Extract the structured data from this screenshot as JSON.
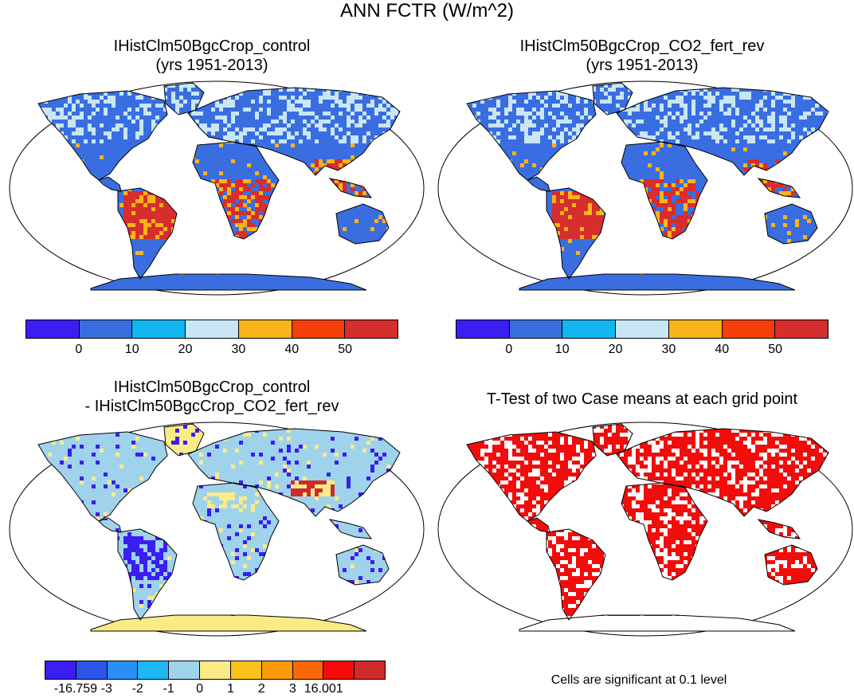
{
  "main_title": "ANN FCTR (W/m^2)",
  "panels": {
    "control": {
      "title_line1": "IHistClm50BgcCrop_control",
      "title_line2": "(yrs 1951-2013)"
    },
    "co2": {
      "title_line1": "IHistClm50BgcCrop_CO2_fert_rev",
      "title_line2": "(yrs 1951-2013)"
    },
    "diff": {
      "title_line1": "IHistClm50BgcCrop_control",
      "title_line2": "- IHistClm50BgcCrop_CO2_fert_rev"
    },
    "ttest": {
      "title_line1": "T-Test of two Case means at each grid point",
      "note": "Cells are significant at 0.1 level"
    }
  },
  "colorbars": {
    "abs": {
      "colors": [
        "#3a1ef2",
        "#3a6ee0",
        "#12b6f0",
        "#c8e6f4",
        "#f9b41a",
        "#f53f06",
        "#d62d2d"
      ],
      "labels": [
        "0",
        "10",
        "20",
        "30",
        "40",
        "50"
      ]
    },
    "diff": {
      "colors": [
        "#3a1ef2",
        "#2a55e8",
        "#2a8ef5",
        "#1eb8f5",
        "#9fd3ec",
        "#faeb87",
        "#f9c21b",
        "#fb9b08",
        "#f96808",
        "#f30c0c",
        "#d02a2a"
      ],
      "labels": [
        "-16.759",
        "-3",
        "-2",
        "-1",
        "0",
        "1",
        "2",
        "3",
        "16.001"
      ]
    }
  },
  "map_colors": {
    "ocean": "#ffffff",
    "coast": "#000000",
    "cool": "#3a6ee0",
    "light": "#c8e6f4",
    "warm": "#f9b41a",
    "hot": "#d62d2d",
    "diff_base": "#9fd3ec",
    "diff_neg": "#3a1ef2",
    "diff_pos": "#faeb87",
    "diff_strong_pos": "#d02a2a",
    "sig": "#f30c0c"
  }
}
